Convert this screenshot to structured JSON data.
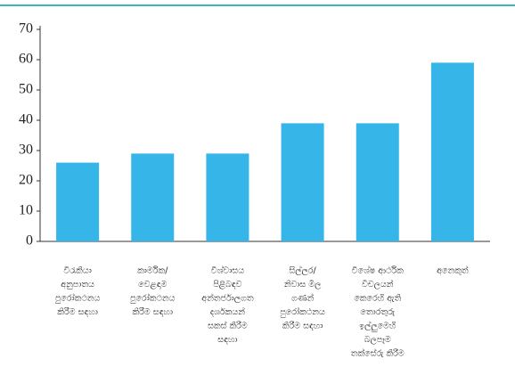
{
  "chart_data": {
    "type": "bar",
    "categories": [
      [
        "විරැකියා",
        "අනුපාතය",
        "පුරෝකථනය",
        "කිරීම සඳහා"
      ],
      [
        "කාර්මික/",
        "වෙළඳාම",
        "පුරෝකථනය",
        "කිරීම සඳහා"
      ],
      [
        "විශ්වාසය",
        "පිළිබඳව",
        "අන්තර්ජාලගත",
        "දර්ශකයන්",
        "සකස් කිරීම",
        "සඳහා"
      ],
      [
        "සිල්ලර/",
        "නිවාස මිල",
        "ගණන්",
        "පුරෝකථනය",
        "කිරීම සඳහා"
      ],
      [
        "විශේෂ ආර්ථික",
        "විචලයන්",
        "කෙරෙහි ඇති",
        "තොරතුරු",
        "ඉල්ලුමෙහි",
        "බලපෑම",
        "තක්සේරු කිරීම"
      ],
      [
        "අනෙකුත්"
      ]
    ],
    "values": [
      26,
      29,
      29,
      39,
      39,
      59
    ],
    "color": "#35b5e8",
    "ylim": [
      0,
      70
    ],
    "yticks": [
      0,
      10,
      20,
      30,
      40,
      50,
      60,
      70
    ],
    "grid": false
  }
}
